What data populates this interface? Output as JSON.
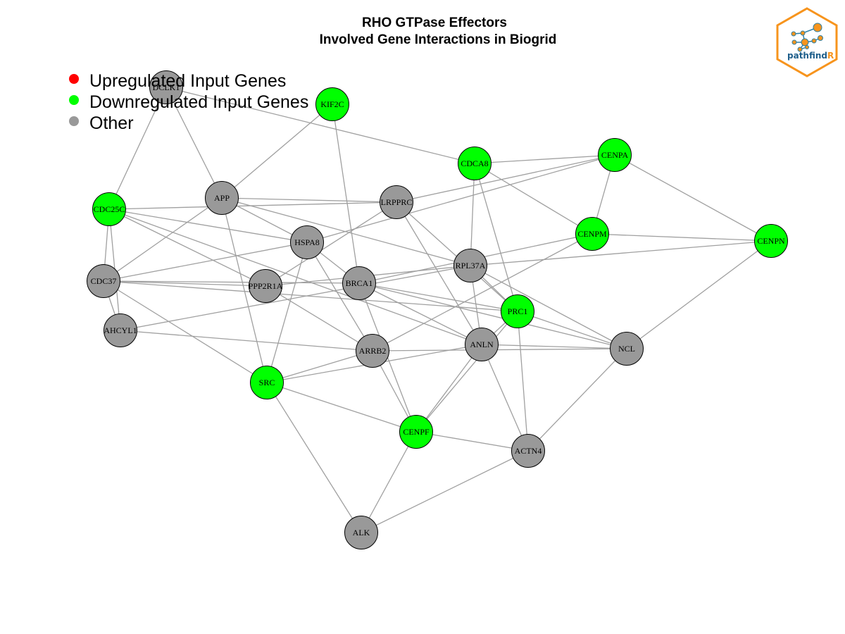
{
  "title": {
    "line1": "RHO GTPase Effectors",
    "line2": "Involved Gene Interactions in Biogrid"
  },
  "legend": [
    {
      "label": "Upregulated Input Genes",
      "color": "#ff0000"
    },
    {
      "label": "Downregulated Input Genes",
      "color": "#00ff00"
    },
    {
      "label": "Other",
      "color": "#999999"
    }
  ],
  "logo": {
    "text_main": "pathfind",
    "text_accent": "R",
    "border_color": "#f7941d",
    "node_color": "#f7941d",
    "link_color": "#2a7fa6"
  },
  "network": {
    "edge_color": "#a0a0a0",
    "colors": {
      "down": "#00ff00",
      "up": "#ff0000",
      "other": "#999999"
    },
    "nodes": [
      {
        "id": "DCLK1",
        "status": "other"
      },
      {
        "id": "KIF2C",
        "status": "down"
      },
      {
        "id": "CDCA8",
        "status": "down"
      },
      {
        "id": "CENPA",
        "status": "down"
      },
      {
        "id": "CDC25C",
        "status": "down"
      },
      {
        "id": "APP",
        "status": "other"
      },
      {
        "id": "LRPPRC",
        "status": "other"
      },
      {
        "id": "CENPM",
        "status": "down"
      },
      {
        "id": "CENPN",
        "status": "down"
      },
      {
        "id": "HSPA8",
        "status": "other"
      },
      {
        "id": "RPL37A",
        "status": "other"
      },
      {
        "id": "CDC37",
        "status": "other"
      },
      {
        "id": "PPP2R1A",
        "status": "other"
      },
      {
        "id": "BRCA1",
        "status": "other"
      },
      {
        "id": "PRC1",
        "status": "down"
      },
      {
        "id": "AHCYL1",
        "status": "other"
      },
      {
        "id": "ARRB2",
        "status": "other"
      },
      {
        "id": "ANLN",
        "status": "other"
      },
      {
        "id": "NCL",
        "status": "other"
      },
      {
        "id": "SRC",
        "status": "down"
      },
      {
        "id": "CENPF",
        "status": "down"
      },
      {
        "id": "ACTN4",
        "status": "other"
      },
      {
        "id": "ALK",
        "status": "other"
      }
    ],
    "edges": [
      [
        "DCLK1",
        "CDC25C"
      ],
      [
        "DCLK1",
        "APP"
      ],
      [
        "DCLK1",
        "CDCA8"
      ],
      [
        "KIF2C",
        "APP"
      ],
      [
        "KIF2C",
        "BRCA1"
      ],
      [
        "CDCA8",
        "CENPA"
      ],
      [
        "CDCA8",
        "CENPM"
      ],
      [
        "CDCA8",
        "PRC1"
      ],
      [
        "CDCA8",
        "RPL37A"
      ],
      [
        "CENPA",
        "CENPM"
      ],
      [
        "CENPA",
        "CENPN"
      ],
      [
        "CENPA",
        "LRPPRC"
      ],
      [
        "CENPA",
        "HSPA8"
      ],
      [
        "CDC25C",
        "LRPPRC"
      ],
      [
        "CDC25C",
        "CDC37"
      ],
      [
        "CDC25C",
        "AHCYL1"
      ],
      [
        "CDC25C",
        "HSPA8"
      ],
      [
        "CDC25C",
        "PPP2R1A"
      ],
      [
        "CDC25C",
        "ANLN"
      ],
      [
        "APP",
        "LRPPRC"
      ],
      [
        "APP",
        "HSPA8"
      ],
      [
        "APP",
        "RPL37A"
      ],
      [
        "APP",
        "CDC37"
      ],
      [
        "APP",
        "SRC"
      ],
      [
        "LRPPRC",
        "PPP2R1A"
      ],
      [
        "LRPPRC",
        "ANLN"
      ],
      [
        "LRPPRC",
        "PRC1"
      ],
      [
        "CENPM",
        "CENPN"
      ],
      [
        "CENPM",
        "ARRB2"
      ],
      [
        "CENPM",
        "BRCA1"
      ],
      [
        "CENPN",
        "NCL"
      ],
      [
        "CENPN",
        "RPL37A"
      ],
      [
        "HSPA8",
        "CDC37"
      ],
      [
        "HSPA8",
        "SRC"
      ],
      [
        "HSPA8",
        "BRCA1"
      ],
      [
        "HSPA8",
        "ARRB2"
      ],
      [
        "RPL37A",
        "ANLN"
      ],
      [
        "RPL37A",
        "NCL"
      ],
      [
        "RPL37A",
        "AHCYL1"
      ],
      [
        "RPL37A",
        "PRC1"
      ],
      [
        "RPL37A",
        "PPP2R1A"
      ],
      [
        "CDC37",
        "AHCYL1"
      ],
      [
        "CDC37",
        "BRCA1"
      ],
      [
        "CDC37",
        "SRC"
      ],
      [
        "CDC37",
        "PRC1"
      ],
      [
        "CDC37",
        "PPP2R1A"
      ],
      [
        "PPP2R1A",
        "ARRB2"
      ],
      [
        "BRCA1",
        "PRC1"
      ],
      [
        "BRCA1",
        "ANLN"
      ],
      [
        "BRCA1",
        "NCL"
      ],
      [
        "BRCA1",
        "CENPF"
      ],
      [
        "PRC1",
        "ANLN"
      ],
      [
        "PRC1",
        "ACTN4"
      ],
      [
        "PRC1",
        "NCL"
      ],
      [
        "PRC1",
        "CENPF"
      ],
      [
        "AHCYL1",
        "ARRB2"
      ],
      [
        "ARRB2",
        "SRC"
      ],
      [
        "ARRB2",
        "CENPF"
      ],
      [
        "ARRB2",
        "NCL"
      ],
      [
        "ANLN",
        "NCL"
      ],
      [
        "ANLN",
        "SRC"
      ],
      [
        "ANLN",
        "CENPF"
      ],
      [
        "ANLN",
        "ACTN4"
      ],
      [
        "NCL",
        "ACTN4"
      ],
      [
        "SRC",
        "CENPF"
      ],
      [
        "SRC",
        "ALK"
      ],
      [
        "CENPF",
        "ACTN4"
      ],
      [
        "CENPF",
        "ALK"
      ],
      [
        "ACTN4",
        "ALK"
      ]
    ]
  }
}
